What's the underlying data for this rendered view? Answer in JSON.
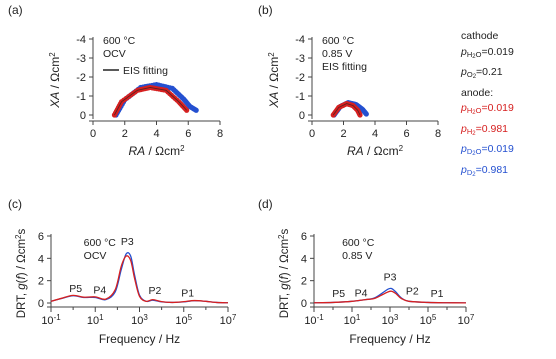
{
  "colors": {
    "red": "#d62020",
    "blue": "#2450d0",
    "axis": "#444444",
    "text": "#222222"
  },
  "chart_data": [
    {
      "panel": "(a)",
      "type": "scatter",
      "xlabel": "RA / Ωcm²",
      "ylabel": "XA / Ωcm²",
      "xlim": [
        0,
        8
      ],
      "ylim": [
        0,
        -4
      ],
      "xticks": [
        "0",
        "2",
        "4",
        "6",
        "8"
      ],
      "yticks": [
        "-4",
        "-3",
        "-2",
        "-1",
        "0"
      ],
      "annotations": [
        "600 °C",
        "OCV"
      ],
      "legend": [
        "EIS fitting"
      ],
      "series": [
        {
          "color": "#2450d0",
          "x": [
            1.45,
            2.0,
            3.0,
            4.0,
            5.0,
            5.7,
            6.1,
            6.5
          ],
          "y": [
            0,
            -0.8,
            -1.45,
            -1.6,
            -1.4,
            -0.85,
            -0.45,
            -0.25
          ]
        },
        {
          "color": "#d62020",
          "x": [
            1.35,
            1.8,
            2.8,
            3.6,
            4.6,
            5.4,
            5.9
          ],
          "y": [
            0,
            -0.7,
            -1.3,
            -1.45,
            -1.3,
            -0.7,
            -0.25
          ]
        }
      ]
    },
    {
      "panel": "(b)",
      "type": "scatter",
      "xlabel": "RA / Ωcm²",
      "ylabel": "XA / Ωcm²",
      "xlim": [
        0,
        8
      ],
      "ylim": [
        0,
        -4
      ],
      "xticks": [
        "0",
        "2",
        "4",
        "6",
        "8"
      ],
      "yticks": [
        "-4",
        "-3",
        "-2",
        "-1",
        "0"
      ],
      "annotations": [
        "600 °C",
        "0.85 V",
        "EIS fitting"
      ],
      "series": [
        {
          "color": "#2450d0",
          "x": [
            1.4,
            1.8,
            2.3,
            2.8,
            3.2,
            3.45
          ],
          "y": [
            0,
            -0.45,
            -0.65,
            -0.55,
            -0.3,
            -0.05
          ]
        },
        {
          "color": "#d62020",
          "x": [
            1.35,
            1.7,
            2.2,
            2.6,
            2.9,
            3.05
          ],
          "y": [
            0,
            -0.4,
            -0.6,
            -0.5,
            -0.25,
            0
          ]
        }
      ]
    },
    {
      "panel": "(c)",
      "type": "line",
      "xlabel": "Frequency / Hz",
      "ylabel": "DRT, g(f) / Ωcm²s",
      "xscale": "log",
      "xlim": [
        0.1,
        10000000
      ],
      "ylim": [
        0,
        6
      ],
      "xticks": [
        "10⁻¹",
        "10¹",
        "10³",
        "10⁵",
        "10⁷"
      ],
      "yticks": [
        "0",
        "2",
        "4",
        "6"
      ],
      "annotations": [
        "600 °C",
        "OCV"
      ],
      "peak_labels": [
        {
          "label": "P5",
          "x": 1.3,
          "y": 1.0
        },
        {
          "label": "P4",
          "x": 16,
          "y": 0.85
        },
        {
          "label": "P3",
          "x": 280,
          "y": 5.2
        },
        {
          "label": "P2",
          "x": 5000,
          "y": 0.8
        },
        {
          "label": "P1",
          "x": 150000,
          "y": 0.6
        }
      ],
      "series": [
        {
          "color": "#2450d0",
          "x": [
            0.1,
            0.3,
            1,
            3,
            10,
            30,
            80,
            150,
            250,
            400,
            600,
            1000,
            2000,
            4000,
            10000,
            30000,
            100000,
            300000,
            1000000,
            3000000,
            10000000
          ],
          "y": [
            0.15,
            0.4,
            0.65,
            0.5,
            0.5,
            0.3,
            1.0,
            3.0,
            4.4,
            4.2,
            2.5,
            0.7,
            0.15,
            0.25,
            0.1,
            0.05,
            0.1,
            0.2,
            0.15,
            0.05,
            0.02
          ]
        },
        {
          "color": "#d62020",
          "x": [
            0.1,
            0.3,
            1,
            3,
            10,
            30,
            80,
            150,
            250,
            400,
            600,
            1000,
            2000,
            4000,
            10000,
            30000,
            100000,
            300000,
            1000000,
            3000000,
            10000000
          ],
          "y": [
            0.15,
            0.42,
            0.68,
            0.52,
            0.55,
            0.35,
            1.2,
            3.3,
            4.2,
            3.8,
            2.2,
            0.6,
            0.15,
            0.3,
            0.12,
            0.05,
            0.12,
            0.22,
            0.15,
            0.05,
            0.02
          ]
        }
      ]
    },
    {
      "panel": "(d)",
      "type": "line",
      "xlabel": "Frequency / Hz",
      "ylabel": "DRT, g(f) / Ωcm²s",
      "xscale": "log",
      "xlim": [
        0.1,
        10000000
      ],
      "ylim": [
        0,
        6
      ],
      "xticks": [
        "10⁻¹",
        "10¹",
        "10³",
        "10⁵",
        "10⁷"
      ],
      "yticks": [
        "0",
        "2",
        "4",
        "6"
      ],
      "annotations": [
        "600 °C",
        "0.85 V"
      ],
      "peak_labels": [
        {
          "label": "P5",
          "x": 2.0,
          "y": 0.55
        },
        {
          "label": "P4",
          "x": 30,
          "y": 0.6
        },
        {
          "label": "P3",
          "x": 1000,
          "y": 2.0
        },
        {
          "label": "P2",
          "x": 15000,
          "y": 0.75
        },
        {
          "label": "P1",
          "x": 300000,
          "y": 0.55
        }
      ],
      "series": [
        {
          "color": "#2450d0",
          "x": [
            0.1,
            1,
            10,
            50,
            150,
            400,
            800,
            1200,
            2000,
            4000,
            10000,
            100000,
            1000000,
            10000000
          ],
          "y": [
            0.02,
            0.05,
            0.15,
            0.3,
            0.45,
            0.9,
            1.25,
            1.3,
            1.0,
            0.45,
            0.15,
            0.05,
            0.02,
            0.01
          ]
        },
        {
          "color": "#d62020",
          "x": [
            0.1,
            1,
            10,
            50,
            150,
            400,
            800,
            1200,
            2000,
            4000,
            10000,
            100000,
            1000000,
            10000000
          ],
          "y": [
            0.02,
            0.05,
            0.15,
            0.3,
            0.4,
            0.75,
            1.0,
            1.05,
            0.85,
            0.4,
            0.15,
            0.05,
            0.02,
            0.01
          ]
        }
      ]
    }
  ],
  "side_legend": {
    "cathode_title": "cathode",
    "cathode_h2o": "=0.019",
    "cathode_o2": "=0.21",
    "anode_title": "anode:",
    "anode_h2o": "=0.019",
    "anode_h2": "=0.981",
    "anode_d2o": "=0.019",
    "anode_d2": "=0.981"
  }
}
